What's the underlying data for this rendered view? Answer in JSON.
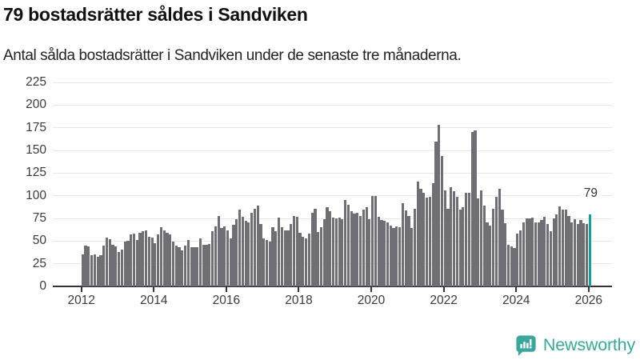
{
  "header": {
    "title": "79 bostadsrätter såldes i Sandviken",
    "subtitle": "Antal sålda bostadsrätter i Sandviken under de senaste tre månaderna."
  },
  "chart_data": {
    "type": "bar",
    "title": "79 bostadsrätter såldes i Sandviken",
    "subtitle": "Antal sålda bostadsrätter i Sandviken under de senaste tre månaderna.",
    "frequency": "monthly",
    "x_start": "2012-01",
    "x_end": "2026-01",
    "values": [
      35,
      45,
      44,
      34,
      35,
      33,
      34,
      45,
      54,
      52,
      46,
      44,
      38,
      41,
      49,
      50,
      57,
      58,
      51,
      59,
      61,
      62,
      55,
      54,
      48,
      57,
      65,
      62,
      59,
      57,
      49,
      45,
      43,
      40,
      45,
      51,
      43,
      43,
      43,
      53,
      46,
      46,
      47,
      61,
      66,
      78,
      64,
      66,
      62,
      53,
      68,
      74,
      85,
      77,
      72,
      71,
      81,
      86,
      89,
      69,
      53,
      51,
      49,
      65,
      61,
      76,
      65,
      62,
      62,
      69,
      78,
      77,
      59,
      55,
      53,
      58,
      81,
      86,
      60,
      65,
      74,
      87,
      83,
      76,
      75,
      76,
      74,
      95,
      90,
      83,
      80,
      81,
      78,
      85,
      87,
      74,
      100,
      100,
      77,
      73,
      72,
      71,
      67,
      64,
      66,
      65,
      92,
      84,
      78,
      64,
      86,
      116,
      108,
      103,
      98,
      99,
      114,
      160,
      178,
      144,
      106,
      86,
      109,
      105,
      99,
      85,
      87,
      103,
      103,
      170,
      172,
      97,
      106,
      89,
      71,
      67,
      86,
      99,
      108,
      85,
      70,
      46,
      44,
      42,
      58,
      62,
      71,
      75,
      75,
      76,
      71,
      71,
      73,
      77,
      69,
      61,
      75,
      79,
      88,
      85,
      85,
      78,
      71,
      74,
      69,
      73,
      70,
      69,
      79
    ],
    "highlight": {
      "index": 168,
      "value": 79,
      "label": "79",
      "color": "#12a09b"
    },
    "bar_color": "#6e6e74",
    "grid": "horizontal",
    "gridline_color": "#e7e7e7",
    "axis_color": "#333333",
    "ylim": [
      0,
      225
    ],
    "y_ticks": [
      0,
      25,
      50,
      75,
      100,
      125,
      150,
      175,
      200,
      225
    ],
    "x_tick_years": [
      "2012",
      "2014",
      "2016",
      "2018",
      "2020",
      "2022",
      "2024",
      "2026"
    ],
    "xlabel": "",
    "ylabel": "",
    "legend": "none"
  },
  "annotation": {
    "last_value_label": "79"
  },
  "branding": {
    "name": "Newsworthy",
    "color": "#3aa69c"
  }
}
